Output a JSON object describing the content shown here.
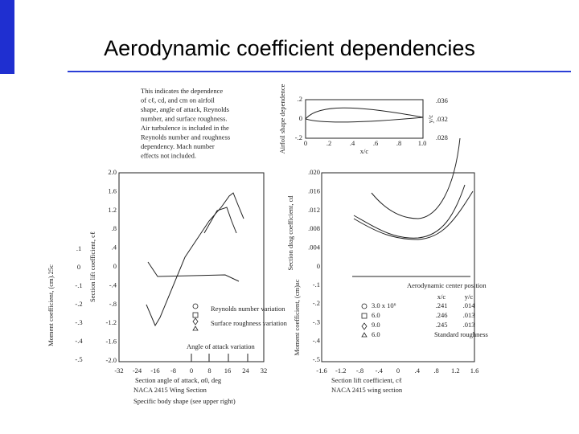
{
  "slide": {
    "title": "Aerodynamic coefficient dependencies"
  },
  "figure": {
    "note": [
      "This indicates the dependence",
      "of cℓ, cd, and cm on airfoil",
      "shape, angle of attack, Reynolds",
      "number, and surface roughness.",
      "Air turbulence is included in the",
      "Reynolds number and roughness",
      "dependency.  Mach number",
      "effects not included."
    ],
    "inset": {
      "y_label": "Airfoil shape dependence",
      "y_axis": "y/c",
      "x_axis": "x/c",
      "yticks": [
        ".2",
        "0",
        "-.2"
      ],
      "xticks": [
        "0",
        ".2",
        ".4",
        ".6",
        ".8",
        "1.0"
      ],
      "right_ticks": [
        ".036",
        ".032",
        ".028"
      ]
    },
    "left": {
      "y_label": "Section lift coefficient, cℓ",
      "y2_label": "Moment coefficient, (cm).25c",
      "yticks": [
        "2.0",
        "1.6",
        "1.2",
        ".8",
        ".4",
        "0",
        "-.4",
        "-.8",
        "-1.2",
        "-1.6",
        "-2.0"
      ],
      "y2ticks": [
        ".1",
        "0",
        "-.1",
        "-.2",
        "-.3",
        "-.4",
        "-.5"
      ],
      "xticks": [
        "-32",
        "-24",
        "-16",
        "-8",
        "0",
        "8",
        "16",
        "24",
        "32"
      ],
      "x_label": "Section angle of attack, α0, deg",
      "legend": [
        "Reynolds number variation",
        "Surface roughness variation"
      ],
      "annotation": "Angle of attack variation",
      "caption": [
        "NACA 2415 Wing Section",
        "Specific body shape (see upper right)"
      ]
    },
    "right": {
      "y_label": "Section drag coefficient, cd",
      "y2_label": "Moment coefficient, (cm)ac",
      "yticks": [
        ".020",
        ".016",
        ".012",
        ".008",
        ".004",
        "0"
      ],
      "y2ticks": [
        "-.1",
        "-.2",
        "-.3",
        "-.4",
        "-.5"
      ],
      "xticks": [
        "-1.6",
        "-1.2",
        "-.8",
        "-.4",
        "0",
        ".4",
        ".8",
        "1.2",
        "1.6"
      ],
      "x_label": "Section lift coefficient, cℓ",
      "caption": "NACA 2415 wing section",
      "legend_title": "Aerodynamic center position",
      "legend_header": [
        "x/c",
        "y/c"
      ],
      "legend_rows": [
        [
          "3.0 x 10⁶",
          ".241",
          ".014"
        ],
        [
          "6.0",
          ".246",
          ".013"
        ],
        [
          "9.0",
          ".245",
          ".013"
        ],
        [
          "6.0",
          "Standard roughness"
        ]
      ]
    }
  }
}
